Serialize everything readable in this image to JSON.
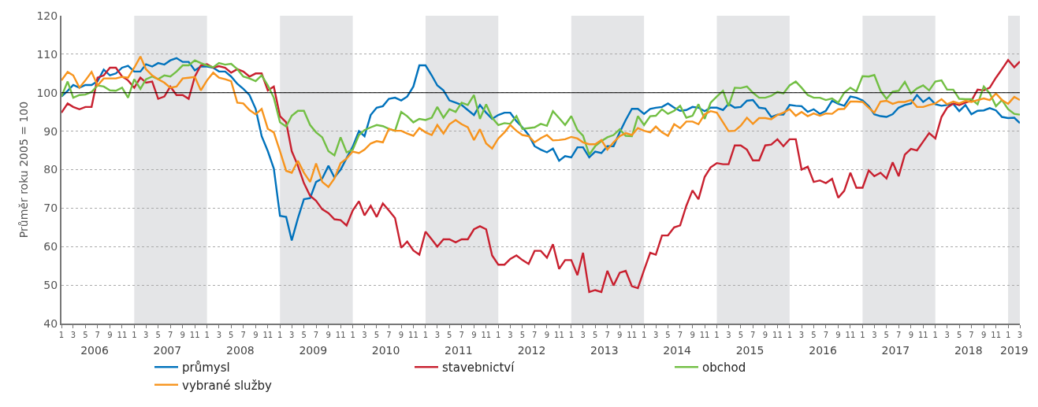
{
  "chart_data": {
    "type": "line",
    "ylabel": "Průměr roku 2005 = 100",
    "x": [
      "2006-01",
      "2006-02",
      "2006-03",
      "2006-04",
      "2006-05",
      "2006-06",
      "2006-07",
      "2006-08",
      "2006-09",
      "2006-10",
      "2006-11",
      "2006-12",
      "2007-01",
      "2007-02",
      "2007-03",
      "2007-04",
      "2007-05",
      "2007-06",
      "2007-07",
      "2007-08",
      "2007-09",
      "2007-10",
      "2007-11",
      "2007-12",
      "2008-01",
      "2008-02",
      "2008-03",
      "2008-04",
      "2008-05",
      "2008-06",
      "2008-07",
      "2008-08",
      "2008-09",
      "2008-10",
      "2008-11",
      "2008-12",
      "2009-01",
      "2009-02",
      "2009-03",
      "2009-04",
      "2009-05",
      "2009-06",
      "2009-07",
      "2009-08",
      "2009-09",
      "2009-10",
      "2009-11",
      "2009-12",
      "2010-01",
      "2010-02",
      "2010-03",
      "2010-04",
      "2010-05",
      "2010-06",
      "2010-07",
      "2010-08",
      "2010-09",
      "2010-10",
      "2010-11",
      "2010-12",
      "2011-01",
      "2011-02",
      "2011-03",
      "2011-04",
      "2011-05",
      "2011-06",
      "2011-07",
      "2011-08",
      "2011-09",
      "2011-10",
      "2011-11",
      "2011-12",
      "2012-01",
      "2012-02",
      "2012-03",
      "2012-04",
      "2012-05",
      "2012-06",
      "2012-07",
      "2012-08",
      "2012-09",
      "2012-10",
      "2012-11",
      "2012-12",
      "2013-01",
      "2013-02",
      "2013-03",
      "2013-04",
      "2013-05",
      "2013-06",
      "2013-07",
      "2013-08",
      "2013-09",
      "2013-10",
      "2013-11",
      "2013-12",
      "2014-01",
      "2014-02",
      "2014-03",
      "2014-04",
      "2014-05",
      "2014-06",
      "2014-07",
      "2014-08",
      "2014-09",
      "2014-10",
      "2014-11",
      "2014-12",
      "2015-01",
      "2015-02",
      "2015-03",
      "2015-04",
      "2015-05",
      "2015-06",
      "2015-07",
      "2015-08",
      "2015-09",
      "2015-10",
      "2015-11",
      "2015-12",
      "2016-01",
      "2016-02",
      "2016-03",
      "2016-04",
      "2016-05",
      "2016-06",
      "2016-07",
      "2016-08",
      "2016-09",
      "2016-10",
      "2016-11",
      "2016-12",
      "2017-01",
      "2017-02",
      "2017-03",
      "2017-04",
      "2017-05",
      "2017-06",
      "2017-07",
      "2017-08",
      "2017-09",
      "2017-10",
      "2017-11",
      "2017-12",
      "2018-01",
      "2018-02",
      "2018-03",
      "2018-04",
      "2018-05",
      "2018-06",
      "2018-07",
      "2018-08",
      "2018-09",
      "2018-10",
      "2018-11",
      "2018-12",
      "2019-01",
      "2019-02",
      "2019-03"
    ],
    "series": [
      {
        "name": "průmysl",
        "color": "#0072bc",
        "values": [
          99,
          100.5,
          102,
          101.3,
          102,
          102,
          103,
          106,
          104.5,
          105,
          106.5,
          107,
          105.5,
          105.5,
          107.4,
          106.8,
          107.7,
          107.3,
          108.4,
          109,
          108,
          108,
          105.8,
          106.8,
          106.8,
          106.5,
          105.5,
          105.5,
          104.2,
          102.3,
          101,
          99.4,
          95.8,
          88.7,
          84.8,
          80.3,
          68,
          67.7,
          61.6,
          67.4,
          72.3,
          72.6,
          76.8,
          77.7,
          81,
          78,
          80,
          83,
          86,
          90,
          88.7,
          94.2,
          96.1,
          96.5,
          98.4,
          98.7,
          98,
          99,
          101.6,
          107.1,
          107.1,
          104.5,
          101.9,
          100.6,
          98,
          97.4,
          96.8,
          95.5,
          94.2,
          96.8,
          94.8,
          93.2,
          94.2,
          94.8,
          94.8,
          92.6,
          91,
          89,
          86.1,
          85.2,
          84.5,
          85.5,
          82.3,
          83.5,
          83.2,
          85.8,
          85.8,
          83.2,
          84.7,
          84.3,
          86.1,
          86.1,
          89.7,
          92.9,
          95.8,
          95.8,
          94.5,
          95.8,
          96.1,
          96.3,
          97.2,
          96.1,
          95.3,
          95.5,
          96.3,
          96.1,
          95.2,
          96.1,
          96.1,
          95.5,
          97.1,
          96.1,
          96.3,
          97.9,
          98.1,
          96.1,
          95.9,
          93.7,
          94.3,
          94.3,
          96.8,
          96.6,
          96.5,
          95,
          95.7,
          94.5,
          95.3,
          97.9,
          97.1,
          96.6,
          99,
          98.7,
          98,
          96.5,
          94.4,
          93.9,
          93.7,
          94.4,
          96.1,
          96.8,
          97.2,
          99.4,
          97.6,
          98.7,
          97,
          96.6,
          96.8,
          97.1,
          95.2,
          96.8,
          94.4,
          95.3,
          95.4,
          96,
          95.4,
          93.7,
          93.4,
          93.5,
          92.1
        ]
      },
      {
        "name": "stavebnictví",
        "color": "#c8202f",
        "values": [
          94.8,
          97.2,
          96.3,
          95.7,
          96.3,
          96.3,
          103.9,
          104.5,
          106.5,
          106.5,
          104.2,
          103.2,
          101.3,
          103.9,
          102.6,
          102.9,
          98.4,
          99,
          101.6,
          99.4,
          99.4,
          98.4,
          104.2,
          107.1,
          107.4,
          106.5,
          106.9,
          106.5,
          105.2,
          106.1,
          105.5,
          104.2,
          105,
          105,
          100.6,
          101.6,
          93.9,
          92.3,
          84.8,
          81,
          76.5,
          73.2,
          71.9,
          69.7,
          68.7,
          67.1,
          66.9,
          65.5,
          69.4,
          71.8,
          68.1,
          70.6,
          67.7,
          71.2,
          69.4,
          67.4,
          59.7,
          61.3,
          59,
          57.9,
          63.9,
          61.9,
          60,
          61.9,
          61.9,
          61.1,
          61.9,
          61.9,
          64.5,
          65.3,
          64.5,
          57.7,
          55.3,
          55.3,
          56.8,
          57.7,
          56.5,
          55.5,
          58.9,
          58.9,
          57.1,
          60.6,
          54.2,
          56.5,
          56.5,
          52.6,
          58.4,
          48.2,
          48.7,
          48.2,
          53.7,
          49.9,
          53.2,
          53.7,
          49.7,
          49.2,
          53.9,
          58.4,
          57.9,
          62.9,
          62.9,
          65,
          65.5,
          70.6,
          74.6,
          72.3,
          78.1,
          80.6,
          81.7,
          81.4,
          81.4,
          86.3,
          86.3,
          85.2,
          82.4,
          82.4,
          86.3,
          86.5,
          87.9,
          86.1,
          87.9,
          87.9,
          80,
          80.8,
          76.8,
          77.2,
          76.5,
          77.6,
          72.7,
          74.5,
          79.2,
          75.3,
          75.3,
          79.8,
          78.3,
          79.2,
          77.7,
          81.9,
          78.3,
          83.9,
          85.4,
          85,
          87.3,
          89.5,
          88.1,
          93.7,
          96.1,
          97.2,
          96.8,
          97.4,
          97.9,
          100.8,
          100.6,
          101.3,
          103.9,
          106.1,
          108.5,
          106.6,
          108.1
        ]
      },
      {
        "name": "obchod",
        "color": "#72bf44",
        "values": [
          99,
          102.9,
          98.7,
          99.4,
          99.5,
          100.2,
          101.9,
          101.6,
          100.6,
          100.5,
          101.3,
          98.7,
          103.5,
          101,
          103.5,
          104.2,
          103.5,
          104.5,
          104.2,
          105.5,
          107.1,
          107.1,
          108.4,
          107.7,
          107.1,
          106.6,
          107.7,
          107.3,
          107.5,
          106.1,
          104.2,
          103.7,
          103,
          104.5,
          101.9,
          98.7,
          92.3,
          91.2,
          94,
          95.3,
          95.3,
          91.6,
          89.7,
          88.4,
          84.8,
          83.7,
          88.4,
          84.5,
          85.2,
          89,
          90.3,
          91,
          91.6,
          91.3,
          90.6,
          90.1,
          95,
          93.9,
          92.3,
          93.2,
          92.9,
          93.5,
          96.3,
          93.5,
          95.7,
          95,
          97.4,
          96.8,
          99.4,
          93.2,
          97,
          93.5,
          91.6,
          92.1,
          91.9,
          93.9,
          90.6,
          90.8,
          91,
          91.9,
          91.4,
          95.2,
          93.4,
          91.6,
          93.9,
          90.3,
          88.8,
          83.9,
          86.1,
          87.4,
          88.4,
          89,
          90.5,
          88.8,
          88.7,
          93.9,
          91.6,
          93.9,
          94,
          95.7,
          94.5,
          95.3,
          96.6,
          93.5,
          94,
          97,
          93.2,
          97.4,
          99,
          100.5,
          96.5,
          101.3,
          101.2,
          101.6,
          100,
          98.7,
          98.7,
          99.2,
          100.2,
          99.8,
          101.9,
          102.9,
          101.3,
          99.4,
          98.7,
          98.7,
          98.1,
          98.5,
          97.4,
          100,
          101.3,
          100.3,
          104.3,
          104.2,
          104.6,
          100.5,
          98.4,
          100.3,
          100.5,
          102.8,
          99.8,
          101.1,
          101.9,
          100.6,
          102.9,
          103.2,
          100.8,
          100.8,
          98.4,
          98.3,
          98.3,
          97,
          101.6,
          99.8,
          96.5,
          98.1,
          95.7,
          94.5,
          94.3
        ]
      },
      {
        "name": "vybrané služby",
        "color": "#f7941d",
        "values": [
          103.2,
          105.4,
          104.5,
          101.3,
          103.2,
          105.4,
          101.9,
          103.7,
          103.7,
          103.7,
          104.1,
          103.9,
          106.5,
          109.4,
          106.1,
          104.5,
          103.5,
          102.6,
          101.3,
          101.6,
          103.7,
          103.9,
          104.1,
          100.6,
          103.2,
          105.2,
          103.9,
          103.5,
          103,
          97.4,
          97.2,
          95.5,
          94.4,
          95.8,
          90.6,
          89.7,
          84.8,
          79.7,
          79.2,
          82.3,
          79.2,
          76.8,
          81.6,
          76.8,
          75.5,
          77.7,
          81.7,
          82.9,
          84.7,
          84.3,
          85.2,
          86.8,
          87.4,
          87.1,
          90.6,
          90.1,
          90.1,
          89.4,
          88.8,
          90.8,
          89.7,
          89,
          91.6,
          89.4,
          91.8,
          92.9,
          91.8,
          91,
          87.7,
          90.5,
          86.8,
          85.5,
          88.1,
          89.7,
          91.6,
          90.1,
          89,
          88.7,
          87.1,
          88.2,
          89,
          87.6,
          87.7,
          87.9,
          88.5,
          88.1,
          87.1,
          86.6,
          86.6,
          87.7,
          85.2,
          87.1,
          88.7,
          89.5,
          89,
          90.8,
          90.1,
          89.7,
          91.2,
          89.7,
          88.8,
          91.8,
          90.8,
          92.5,
          92.5,
          91.8,
          94.4,
          95.2,
          94.8,
          92.3,
          90,
          90.1,
          91.4,
          93.5,
          91.9,
          93.4,
          93.4,
          93.1,
          94.2,
          94.8,
          95.7,
          94,
          95,
          93.9,
          94.6,
          94,
          94.6,
          94.5,
          95.7,
          95.8,
          97.7,
          97.7,
          97.6,
          96.1,
          94.8,
          97.7,
          97.9,
          97.1,
          97.6,
          97.6,
          98.1,
          96.3,
          96.3,
          96.8,
          97.2,
          98.3,
          97,
          97.7,
          97.2,
          97.9,
          97.6,
          98.1,
          98.5,
          98.1,
          99.8,
          98.1,
          97.1,
          98.9,
          98.1
        ]
      }
    ],
    "xlim": [
      "2006-01",
      "2019-03"
    ],
    "xticks": [
      {
        "value": "2006-01",
        "label": "1"
      },
      {
        "value": "2006-03",
        "label": "3"
      },
      {
        "value": "2006-05",
        "label": "5"
      },
      {
        "value": "2006-07",
        "label": "7"
      },
      {
        "value": "2006-09",
        "label": "9"
      },
      {
        "value": "2006-11",
        "label": "11"
      },
      {
        "value": "2007-01",
        "label": "1"
      },
      {
        "value": "2007-03",
        "label": "3"
      },
      {
        "value": "2007-05",
        "label": "5"
      },
      {
        "value": "2007-07",
        "label": "7"
      },
      {
        "value": "2007-09",
        "label": "9"
      },
      {
        "value": "2007-11",
        "label": "11"
      },
      {
        "value": "2008-01",
        "label": "1"
      },
      {
        "value": "2008-03",
        "label": "3"
      },
      {
        "value": "2008-05",
        "label": "5"
      },
      {
        "value": "2008-07",
        "label": "7"
      },
      {
        "value": "2008-09",
        "label": "9"
      },
      {
        "value": "2008-11",
        "label": "11"
      },
      {
        "value": "2009-01",
        "label": "1"
      },
      {
        "value": "2009-03",
        "label": "3"
      },
      {
        "value": "2009-05",
        "label": "5"
      },
      {
        "value": "2009-07",
        "label": "7"
      },
      {
        "value": "2009-09",
        "label": "9"
      },
      {
        "value": "2009-11",
        "label": "11"
      },
      {
        "value": "2010-01",
        "label": "1"
      },
      {
        "value": "2010-03",
        "label": "3"
      },
      {
        "value": "2010-05",
        "label": "5"
      },
      {
        "value": "2010-07",
        "label": "7"
      },
      {
        "value": "2010-09",
        "label": "9"
      },
      {
        "value": "2010-11",
        "label": "11"
      },
      {
        "value": "2011-01",
        "label": "1"
      },
      {
        "value": "2011-03",
        "label": "3"
      },
      {
        "value": "2011-05",
        "label": "5"
      },
      {
        "value": "2011-07",
        "label": "7"
      },
      {
        "value": "2011-09",
        "label": "9"
      },
      {
        "value": "2011-11",
        "label": "11"
      },
      {
        "value": "2012-01",
        "label": "1"
      },
      {
        "value": "2012-03",
        "label": "3"
      },
      {
        "value": "2012-05",
        "label": "5"
      },
      {
        "value": "2012-07",
        "label": "7"
      },
      {
        "value": "2012-09",
        "label": "9"
      },
      {
        "value": "2012-11",
        "label": "11"
      },
      {
        "value": "2013-01",
        "label": "1"
      },
      {
        "value": "2013-03",
        "label": "3"
      },
      {
        "value": "2013-05",
        "label": "5"
      },
      {
        "value": "2013-07",
        "label": "7"
      },
      {
        "value": "2013-09",
        "label": "9"
      },
      {
        "value": "2013-11",
        "label": "11"
      },
      {
        "value": "2014-01",
        "label": "1"
      },
      {
        "value": "2014-03",
        "label": "3"
      },
      {
        "value": "2014-05",
        "label": "5"
      },
      {
        "value": "2014-07",
        "label": "7"
      },
      {
        "value": "2014-09",
        "label": "9"
      },
      {
        "value": "2014-11",
        "label": "11"
      },
      {
        "value": "2015-01",
        "label": "1"
      },
      {
        "value": "2015-03",
        "label": "3"
      },
      {
        "value": "2015-05",
        "label": "5"
      },
      {
        "value": "2015-07",
        "label": "7"
      },
      {
        "value": "2015-09",
        "label": "9"
      },
      {
        "value": "2015-11",
        "label": "11"
      },
      {
        "value": "2016-01",
        "label": "1"
      },
      {
        "value": "2016-03",
        "label": "3"
      },
      {
        "value": "2016-05",
        "label": "5"
      },
      {
        "value": "2016-07",
        "label": "7"
      },
      {
        "value": "2016-09",
        "label": "9"
      },
      {
        "value": "2016-11",
        "label": "11"
      },
      {
        "value": "2017-01",
        "label": "1"
      },
      {
        "value": "2017-03",
        "label": "3"
      },
      {
        "value": "2017-05",
        "label": "5"
      },
      {
        "value": "2017-07",
        "label": "7"
      },
      {
        "value": "2017-09",
        "label": "9"
      },
      {
        "value": "2017-11",
        "label": "11"
      },
      {
        "value": "2018-01",
        "label": "1"
      },
      {
        "value": "2018-03",
        "label": "3"
      },
      {
        "value": "2018-05",
        "label": "5"
      },
      {
        "value": "2018-07",
        "label": "7"
      },
      {
        "value": "2018-09",
        "label": "9"
      },
      {
        "value": "2018-11",
        "label": "11"
      },
      {
        "value": "2019-01",
        "label": "1"
      },
      {
        "value": "2019-03",
        "label": "3"
      }
    ],
    "x2lim": [
      "2006-01",
      "2019-03"
    ],
    "x2ticks": [
      {
        "value": "2006-06-16",
        "label": "2006"
      },
      {
        "value": "2007-06-16",
        "label": "2007"
      },
      {
        "value": "2008-06-16",
        "label": "2008"
      },
      {
        "value": "2009-06-16",
        "label": "2009"
      },
      {
        "value": "2010-06-16",
        "label": "2010"
      },
      {
        "value": "2011-06-16",
        "label": "2011"
      },
      {
        "value": "2012-06-16",
        "label": "2012"
      },
      {
        "value": "2013-06-16",
        "label": "2013"
      },
      {
        "value": "2014-06-16",
        "label": "2014"
      },
      {
        "value": "2015-06-16",
        "label": "2015"
      },
      {
        "value": "2016-06-16",
        "label": "2016"
      },
      {
        "value": "2017-06-16",
        "label": "2017"
      },
      {
        "value": "2018-06-16",
        "label": "2018"
      },
      {
        "value": "2019-02-01",
        "label": "2019"
      }
    ],
    "ylim": [
      40,
      120
    ],
    "yticks": [
      40,
      50,
      60,
      70,
      80,
      90,
      100,
      110,
      120
    ],
    "grid": "y",
    "legend": "bottom",
    "marker": "none",
    "line_style": "solid",
    "ref_lines": [
      {
        "axis": "y",
        "value": 100,
        "color": "#000000"
      }
    ],
    "bands": [
      {
        "axis": "x",
        "from": "2007-01",
        "to": "2008-01",
        "color": "#e4e5e7"
      },
      {
        "axis": "x",
        "from": "2009-01",
        "to": "2010-01",
        "color": "#e4e5e7"
      },
      {
        "axis": "x",
        "from": "2011-01",
        "to": "2012-01",
        "color": "#e4e5e7"
      },
      {
        "axis": "x",
        "from": "2013-01",
        "to": "2014-01",
        "color": "#e4e5e7"
      },
      {
        "axis": "x",
        "from": "2015-01",
        "to": "2016-01",
        "color": "#e4e5e7"
      },
      {
        "axis": "x",
        "from": "2017-01",
        "to": "2018-01",
        "color": "#e4e5e7"
      },
      {
        "axis": "x",
        "from": "2019-01",
        "to": "2019-03",
        "color": "#e4e5e7"
      }
    ]
  }
}
